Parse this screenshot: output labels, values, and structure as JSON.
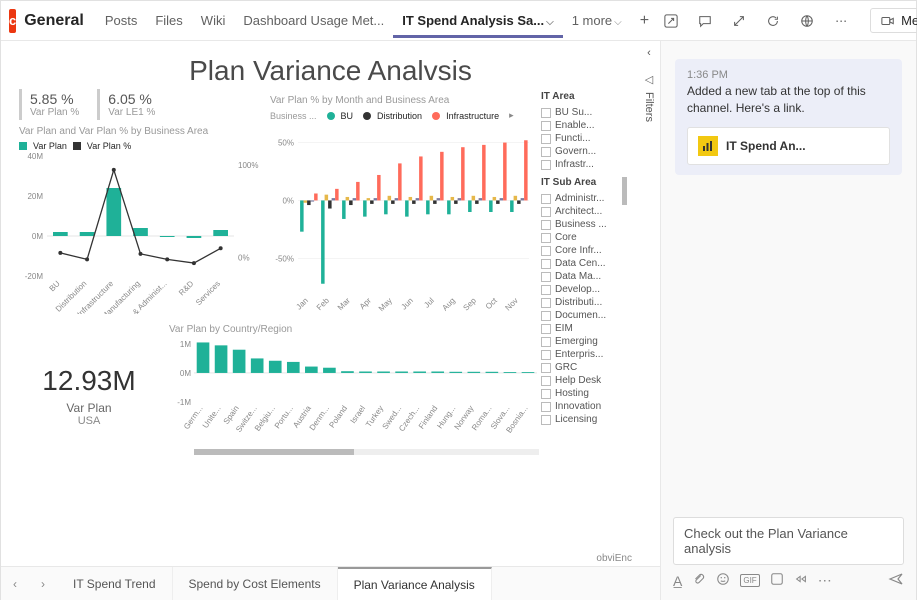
{
  "channel": {
    "initial": "c",
    "name": "General"
  },
  "tabs": {
    "items": [
      {
        "label": "Posts"
      },
      {
        "label": "Files"
      },
      {
        "label": "Wiki"
      },
      {
        "label": "Dashboard Usage Met..."
      },
      {
        "label": "IT Spend Analysis Sa...",
        "active": true,
        "chevron": true
      }
    ],
    "more_label": "1 more",
    "add_icon": "+"
  },
  "top_actions": {
    "meet_label": "Meet"
  },
  "report": {
    "title": "Plan Variance Analvsis",
    "filters_label": "Filters",
    "kpis": [
      {
        "value": "5.85 %",
        "label": "Var Plan %"
      },
      {
        "value": "6.05 %",
        "label": "Var LE1 %"
      }
    ],
    "combo": {
      "title": "Var Plan and Var Plan % by Business Area",
      "legend": [
        {
          "swatch": "#1fb198",
          "label": "Var Plan"
        },
        {
          "swatch": "#333333",
          "label": "Var Plan %"
        }
      ],
      "y_left": [
        "40M",
        "20M",
        "0M",
        "-20M"
      ],
      "y_right": [
        "100%",
        "0%"
      ],
      "categories": [
        "BU",
        "Distribution",
        "Infrastructure",
        "Manufacturing",
        "Office & Administ...",
        "R&D",
        "Services"
      ],
      "bar_color": "#1fb198",
      "line_color": "#333333",
      "bars": [
        2,
        2,
        24,
        4,
        0,
        -1,
        3
      ],
      "line": [
        5,
        -2,
        95,
        4,
        -2,
        -6,
        10
      ],
      "y_bar_min": -20,
      "y_bar_max": 40,
      "y_line_min": -20,
      "y_line_max": 110
    },
    "monthly": {
      "title": "Var Plan % by Month and Business Area",
      "legend_label": "Business ...",
      "series_legend": [
        {
          "swatch": "#1fb198",
          "label": "BU"
        },
        {
          "swatch": "#333333",
          "label": "Distribution"
        },
        {
          "swatch": "#ff6b5b",
          "label": "Infrastructure"
        }
      ],
      "y_ticks": [
        "50%",
        "0%",
        "-50%"
      ],
      "months": [
        "Jan",
        "Feb",
        "Mar",
        "Apr",
        "May",
        "Jun",
        "Jul",
        "Aug",
        "Sep",
        "Oct",
        "Nov"
      ],
      "colors": {
        "bu": "#1fb198",
        "dist": "#333333",
        "infra": "#ff6b5b",
        "other1": "#e6b84a",
        "other2": "#7a7aa0"
      },
      "bu": [
        -27,
        -72,
        -16,
        -14,
        -12,
        -14,
        -12,
        -12,
        -10,
        -10,
        -10
      ],
      "dist": [
        -4,
        -7,
        -4,
        -3,
        -3,
        -3,
        -3,
        -3,
        -3,
        -3,
        -3
      ],
      "infra": [
        6,
        10,
        16,
        22,
        32,
        38,
        42,
        46,
        48,
        50,
        52
      ],
      "o1": [
        -2,
        5,
        3,
        2,
        4,
        3,
        4,
        3,
        4,
        3,
        4
      ],
      "o2": [
        -1,
        2,
        2,
        2,
        2,
        2,
        2,
        2,
        2,
        2,
        2
      ],
      "y_min": -80,
      "y_max": 60
    },
    "it_area": {
      "title": "IT Area",
      "items": [
        "BU Su...",
        "Enable...",
        "Functi...",
        "Govern...",
        "Infrastr..."
      ]
    },
    "it_sub": {
      "title": "IT Sub Area",
      "items": [
        "Administr...",
        "Architect...",
        "Business ...",
        "Core",
        "Core Infr...",
        "Data Cen...",
        "Data Ma...",
        "Develop...",
        "Distributi...",
        "Documen...",
        "EIM",
        "Emerging",
        "Enterpris...",
        "GRC",
        "Help Desk",
        "Hosting",
        "Innovation",
        "Licensing"
      ]
    },
    "big": {
      "value": "12.93M",
      "l1": "Var Plan",
      "l2": "USA"
    },
    "country": {
      "title": "Var Plan by Country/Region",
      "y_ticks": [
        "1M",
        "0M",
        "-1M"
      ],
      "bar_color": "#1fb198",
      "labels": [
        "Germ...",
        "Unite...",
        "Spain",
        "Switze...",
        "Belgiu...",
        "Portu...",
        "Austria",
        "Denm...",
        "Poland",
        "Israel",
        "Turkey",
        "Swed...",
        "Czech...",
        "Finland",
        "Hung...",
        "Norway",
        "Roma...",
        "Slova...",
        "Bosnia..."
      ],
      "values": [
        1.05,
        0.95,
        0.8,
        0.5,
        0.42,
        0.38,
        0.22,
        0.18,
        0.06,
        0.05,
        0.05,
        0.05,
        0.05,
        0.05,
        0.04,
        0.04,
        0.04,
        0.03,
        0.03
      ],
      "y_min": -1,
      "y_max": 1.1
    },
    "watermark": "obviEnc",
    "bottom_tabs": {
      "items": [
        {
          "label": "IT Spend Trend"
        },
        {
          "label": "Spend by Cost Elements"
        },
        {
          "label": "Plan Variance Analysis",
          "active": true
        }
      ]
    }
  },
  "chat": {
    "msg": {
      "time": "1:36 PM",
      "text": "Added a new tab at the top of this channel. Here's a link.",
      "link_title": "IT Spend An..."
    },
    "compose_text": "Check out the Plan Variance analysis"
  }
}
